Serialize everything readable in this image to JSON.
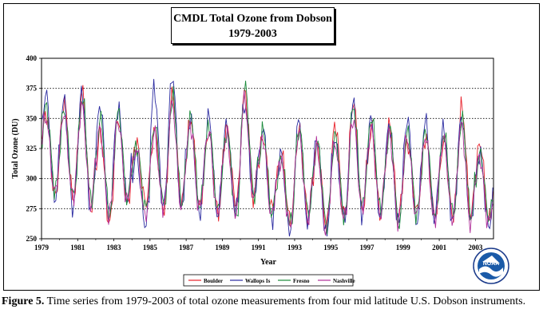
{
  "chart_data": {
    "type": "line",
    "title": "CMDL Total Ozone from Dobson",
    "subtitle": "1979-2003",
    "xlabel": "Year",
    "ylabel": "Total Ozone (DU)",
    "xlim": [
      1979,
      2004
    ],
    "ylim": [
      250,
      400
    ],
    "x_ticks": [
      "1979",
      "1981",
      "1983",
      "1985",
      "1987",
      "1989",
      "1991",
      "1993",
      "1995",
      "1997",
      "1999",
      "2001",
      "2003"
    ],
    "y_ticks": [
      "250",
      "275",
      "300",
      "325",
      "350",
      "375",
      "400"
    ],
    "grid": "horizontal-dotted",
    "legend_position": "bottom",
    "series": [
      {
        "name": "Boulder",
        "color": "#e8202a",
        "annual_max": [
          355,
          365,
          372,
          338,
          350,
          330,
          340,
          370,
          350,
          340,
          342,
          372,
          335,
          322,
          340,
          328,
          345,
          364,
          340,
          345,
          330,
          335,
          330,
          360,
          330
        ],
        "annual_min": [
          285,
          282,
          275,
          262,
          278,
          280,
          275,
          278,
          275,
          272,
          280,
          282,
          275,
          265,
          268,
          262,
          268,
          272,
          270,
          268,
          272,
          268,
          270,
          268,
          265
        ]
      },
      {
        "name": "Wallops Is",
        "color": "#2a2aa0",
        "annual_max": [
          372,
          365,
          372,
          362,
          358,
          320,
          375,
          386,
          350,
          352,
          345,
          362,
          342,
          320,
          348,
          335,
          332,
          362,
          350,
          345,
          350,
          348,
          342,
          352,
          322
        ],
        "annual_min": [
          282,
          275,
          272,
          270,
          282,
          262,
          276,
          272,
          270,
          270,
          272,
          282,
          265,
          255,
          262,
          252,
          268,
          270,
          268,
          262,
          262,
          268,
          265,
          262,
          260
        ]
      },
      {
        "name": "Fresno",
        "color": "#1a8a3a",
        "annual_max": [
          360,
          358,
          368,
          350,
          355,
          328,
          345,
          368,
          352,
          345,
          340,
          376,
          340,
          318,
          342,
          330,
          335,
          360,
          352,
          342,
          338,
          340,
          338,
          350,
          320
        ],
        "annual_min": [
          290,
          285,
          280,
          270,
          282,
          275,
          278,
          280,
          276,
          272,
          268,
          286,
          270,
          262,
          270,
          262,
          268,
          276,
          272,
          262,
          270,
          266,
          270,
          268,
          268
        ]
      },
      {
        "name": "Nashville",
        "color": "#b0309a",
        "annual_max": [
          352,
          355,
          360,
          342,
          348,
          326,
          338,
          362,
          345,
          340,
          336,
          365,
          335,
          316,
          338,
          326,
          330,
          350,
          342,
          338,
          334,
          336,
          334,
          345,
          318
        ],
        "annual_min": [
          288,
          284,
          278,
          268,
          280,
          268,
          276,
          276,
          274,
          270,
          272,
          284,
          268,
          260,
          266,
          256,
          266,
          274,
          270,
          264,
          268,
          264,
          266,
          262,
          262
        ]
      }
    ]
  },
  "caption": {
    "label": "Figure 5.",
    "text": " Time series from 1979-2003 of total ozone measurements from four mid latitude U.S. Dobson instruments."
  },
  "logo": {
    "text": "NOAA"
  }
}
